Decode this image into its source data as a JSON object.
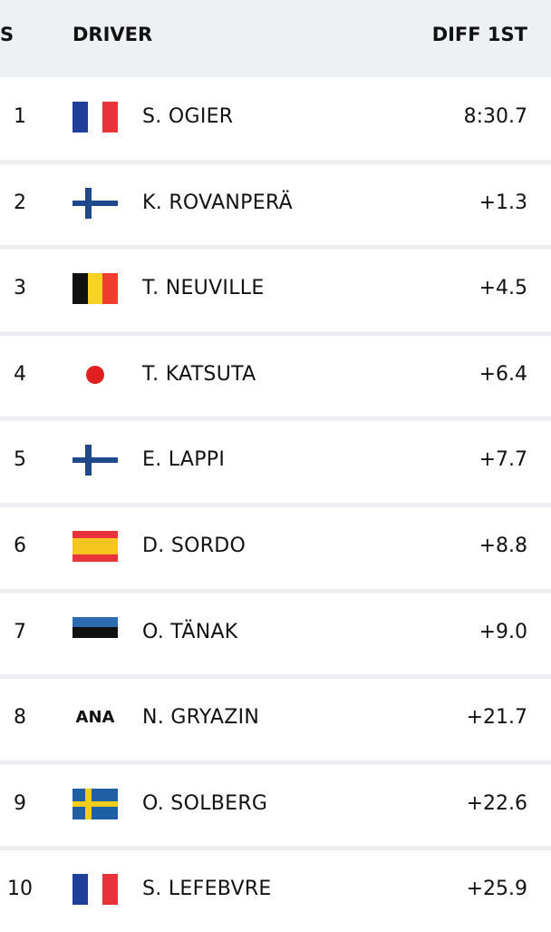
{
  "table": {
    "columns": [
      "S",
      "DRIVER",
      "DIFF 1ST"
    ],
    "rows": [
      {
        "position": "1",
        "driver": "S. OGIER",
        "diff": "8:30.7"
      },
      {
        "position": "2",
        "driver": "K. ROVANPERÄ",
        "diff": "+1.3"
      },
      {
        "position": "3",
        "driver": "T. NEUVILLE",
        "diff": "+4.5"
      },
      {
        "position": "4",
        "driver": "T. KATSUTA",
        "diff": "+6.4"
      },
      {
        "position": "5",
        "driver": "E. LAPPI",
        "diff": "+7.7"
      },
      {
        "position": "6",
        "driver": "D. SORDO",
        "diff": "+8.8"
      },
      {
        "position": "7",
        "driver": "O. TÄNAK",
        "diff": "+9.0"
      },
      {
        "position": "8",
        "driver": "N. GRYAZIN",
        "diff": "+21.7",
        "flag_label": "ANA"
      },
      {
        "position": "9",
        "driver": "O. SOLBERG",
        "diff": "+22.6"
      },
      {
        "position": "10",
        "driver": "S. LEFEBVRE",
        "diff": "+25.9"
      }
    ]
  }
}
